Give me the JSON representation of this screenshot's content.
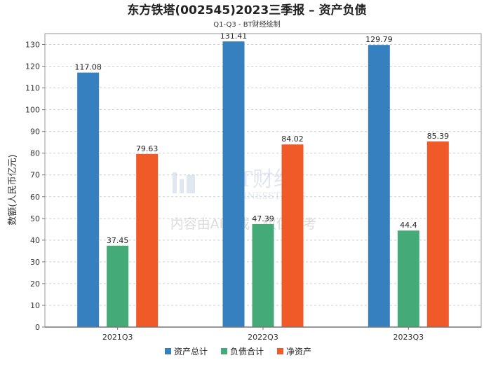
{
  "chart_data": {
    "type": "bar",
    "title": "东方铁塔(002545)2023三季报 – 资产负债",
    "subtitle": "Q1-Q3 - BT财经绘制",
    "ylabel": "数额(人民币亿元)",
    "xlabel": "",
    "ylim": [
      0,
      135
    ],
    "yticks": [
      0,
      10,
      20,
      30,
      40,
      50,
      60,
      70,
      80,
      90,
      100,
      110,
      120,
      130
    ],
    "categories": [
      "2021Q3",
      "2022Q3",
      "2023Q3"
    ],
    "series": [
      {
        "name": "资产总计",
        "color": "#3680c0",
        "values": [
          117.08,
          131.41,
          129.79
        ],
        "labels": [
          "117.08",
          "131.41",
          "129.79"
        ]
      },
      {
        "name": "负债合计",
        "color": "#44aa77",
        "values": [
          37.45,
          47.39,
          44.4
        ],
        "labels": [
          "37.45",
          "47.39",
          "44.4"
        ]
      },
      {
        "name": "净资产",
        "color": "#f05a28",
        "values": [
          79.63,
          84.02,
          85.39
        ],
        "labels": [
          "79.63",
          "84.02",
          "85.39"
        ]
      }
    ],
    "grid": true,
    "legend_position": "bottom"
  },
  "watermark": {
    "brand": "BT财经",
    "brand_en": "BUSINESSTIMES",
    "disclaimer": "内容由AI生成，仅供参考"
  }
}
